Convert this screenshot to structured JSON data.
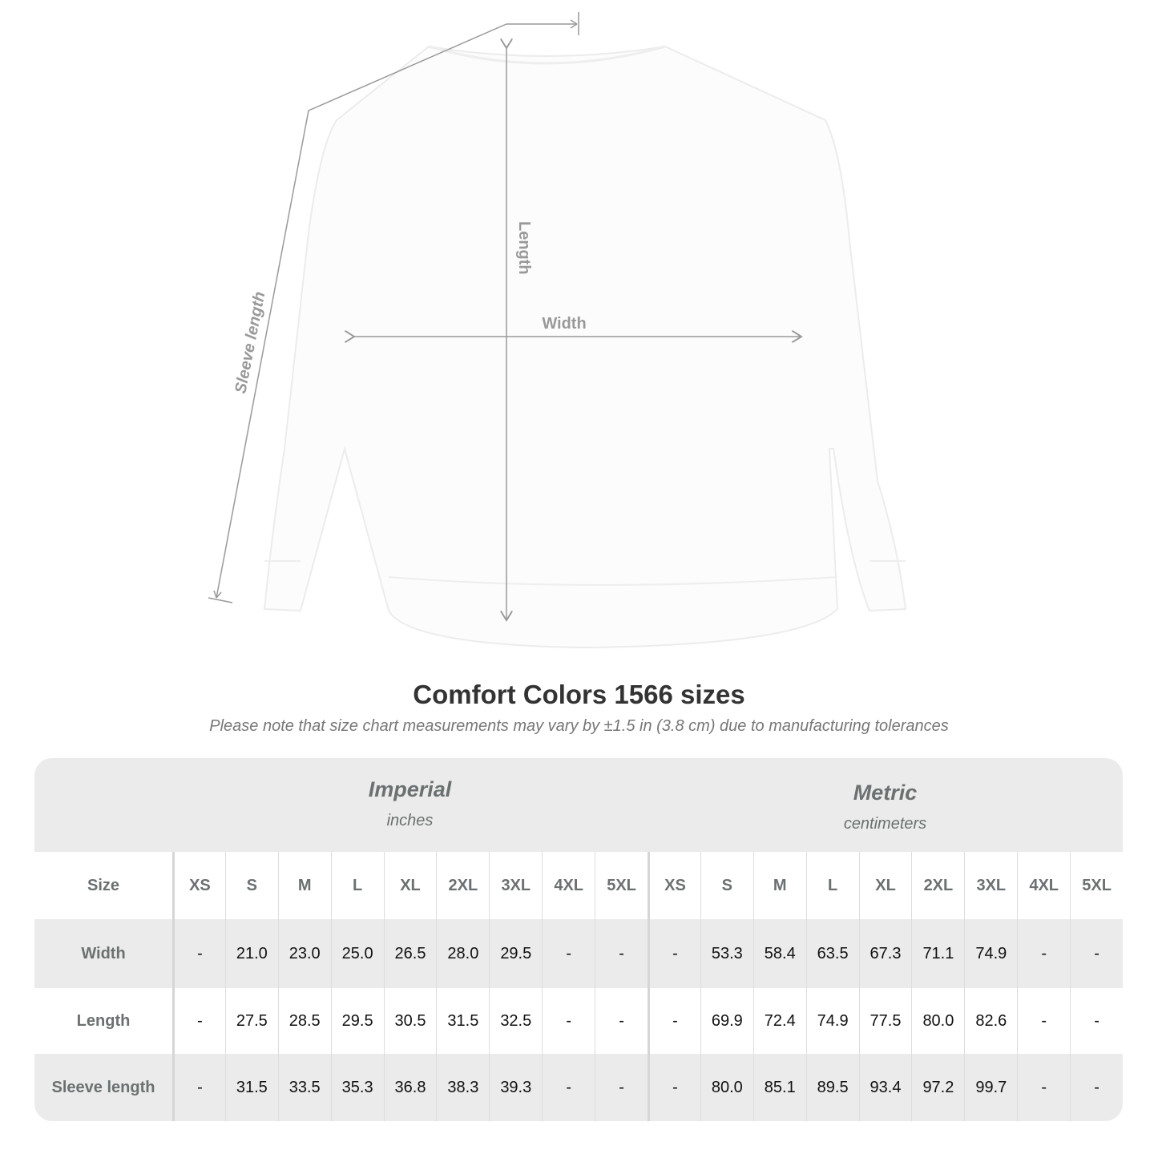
{
  "diagram": {
    "labels": {
      "length": "Length",
      "width": "Width",
      "sleeve": "Sleeve length"
    }
  },
  "title": "Comfort Colors 1566 sizes",
  "note": "Please note that size chart measurements may vary by ±1.5 in (3.8 cm) due to manufacturing tolerances",
  "table": {
    "imperial": {
      "label": "Imperial",
      "unit": "inches"
    },
    "metric": {
      "label": "Metric",
      "unit": "centimeters"
    },
    "size_label": "Size",
    "sizes": [
      "XS",
      "S",
      "M",
      "L",
      "XL",
      "2XL",
      "3XL",
      "4XL",
      "5XL"
    ],
    "rows": [
      {
        "label": "Width",
        "imperial": [
          "-",
          "21.0",
          "23.0",
          "25.0",
          "26.5",
          "28.0",
          "29.5",
          "-",
          "-"
        ],
        "metric": [
          "-",
          "53.3",
          "58.4",
          "63.5",
          "67.3",
          "71.1",
          "74.9",
          "-",
          "-"
        ]
      },
      {
        "label": "Length",
        "imperial": [
          "-",
          "27.5",
          "28.5",
          "29.5",
          "30.5",
          "31.5",
          "32.5",
          "-",
          "-"
        ],
        "metric": [
          "-",
          "69.9",
          "72.4",
          "74.9",
          "77.5",
          "80.0",
          "82.6",
          "-",
          "-"
        ]
      },
      {
        "label": "Sleeve length",
        "imperial": [
          "-",
          "31.5",
          "33.5",
          "35.3",
          "36.8",
          "38.3",
          "39.3",
          "-",
          "-"
        ],
        "metric": [
          "-",
          "80.0",
          "85.1",
          "89.5",
          "93.4",
          "97.2",
          "99.7",
          "-",
          "-"
        ]
      }
    ]
  },
  "colors": {
    "header_bg": "#ebebeb",
    "label_text": "#6b7071",
    "measure_line": "#999999"
  }
}
